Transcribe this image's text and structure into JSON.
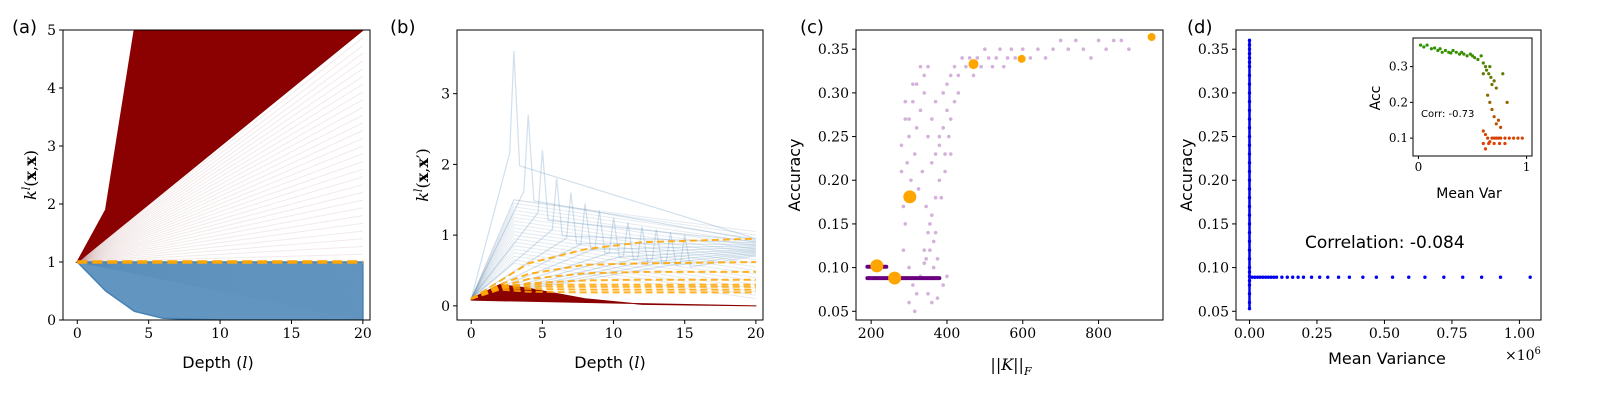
{
  "chart_data": [
    {
      "panel_label": "(a)",
      "type": "line",
      "xlabel": "Depth (",
      "xlabel_var": "l",
      "xlabel_end": ")",
      "ylabel": "k^l(x,x)",
      "xlim": [
        -1,
        20.5
      ],
      "ylim": [
        0,
        5
      ],
      "xticks": [
        "0",
        "5",
        "10",
        "15",
        "20"
      ],
      "yticks": [
        "0",
        "1",
        "2",
        "3",
        "4",
        "5"
      ],
      "series": [
        {
          "role": "divergent",
          "color": "#8b0000",
          "x": [
            0,
            2,
            4,
            6,
            10,
            20
          ],
          "y": [
            1,
            1.9,
            5,
            5,
            5,
            5
          ]
        },
        {
          "role": "convergent",
          "color": "#4682b4",
          "x": [
            0,
            2,
            4,
            6,
            10,
            20
          ],
          "y": [
            1,
            0.5,
            0.15,
            0.03,
            0,
            0
          ]
        },
        {
          "role": "mean",
          "color": "#ffa500",
          "dashed": true,
          "x": [
            0,
            20
          ],
          "y": [
            1,
            1
          ]
        }
      ]
    },
    {
      "panel_label": "(b)",
      "type": "line",
      "xlabel": "Depth (",
      "xlabel_var": "l",
      "xlabel_end": ")",
      "ylabel": "k^l(x,x')",
      "xlim": [
        -1,
        20.5
      ],
      "ylim": [
        -0.2,
        3.9
      ],
      "xticks": [
        "0",
        "5",
        "10",
        "15",
        "20"
      ],
      "yticks": [
        "0",
        "1",
        "2",
        "3"
      ],
      "series": [
        {
          "role": "peaks",
          "color": "#4682b4",
          "x": [
            0,
            2,
            3,
            4,
            6,
            10,
            20
          ],
          "y": [
            0.1,
            1.2,
            3.6,
            2.4,
            1.6,
            1.1,
            1.0
          ]
        },
        {
          "role": "convergent",
          "color": "#8b0000",
          "x": [
            0,
            2,
            4,
            8,
            12,
            20
          ],
          "y": [
            0.1,
            0.3,
            0.25,
            0.1,
            0.02,
            0
          ]
        },
        {
          "role": "mean-1",
          "color": "#ffa500",
          "dashed": true,
          "x": [
            0,
            2,
            4,
            8,
            12,
            20
          ],
          "y": [
            0.1,
            0.35,
            0.6,
            0.8,
            0.9,
            0.95
          ]
        },
        {
          "role": "mean-2",
          "color": "#ffa500",
          "dashed": true,
          "x": [
            0,
            2,
            4,
            8,
            12,
            20
          ],
          "y": [
            0.1,
            0.3,
            0.45,
            0.58,
            0.6,
            0.62
          ]
        },
        {
          "role": "mean-3",
          "color": "#ffa500",
          "dashed": true,
          "x": [
            0,
            2,
            4,
            8,
            12,
            20
          ],
          "y": [
            0.1,
            0.27,
            0.38,
            0.46,
            0.48,
            0.48
          ]
        },
        {
          "role": "mean-4",
          "color": "#ffa500",
          "dashed": true,
          "x": [
            0,
            2,
            4,
            8,
            12,
            20
          ],
          "y": [
            0.1,
            0.25,
            0.32,
            0.36,
            0.37,
            0.37
          ]
        },
        {
          "role": "mean-5",
          "color": "#ffa500",
          "dashed": true,
          "x": [
            0,
            2,
            4,
            8,
            12,
            20
          ],
          "y": [
            0.1,
            0.28,
            0.3,
            0.3,
            0.3,
            0.3
          ]
        },
        {
          "role": "mean-6",
          "color": "#ffa500",
          "dashed": true,
          "x": [
            0,
            2,
            4,
            8,
            12,
            20
          ],
          "y": [
            0.1,
            0.27,
            0.27,
            0.27,
            0.27,
            0.27
          ]
        },
        {
          "role": "mean-7",
          "color": "#ffa500",
          "dashed": true,
          "x": [
            0,
            2,
            4,
            8,
            12,
            20
          ],
          "y": [
            0.1,
            0.25,
            0.24,
            0.23,
            0.23,
            0.23
          ]
        },
        {
          "role": "mean-8",
          "color": "#ffa500",
          "dashed": true,
          "x": [
            0,
            2,
            4,
            8,
            12,
            20
          ],
          "y": [
            0.1,
            0.23,
            0.2,
            0.19,
            0.19,
            0.19
          ]
        }
      ]
    },
    {
      "panel_label": "(c)",
      "type": "scatter",
      "xlabel": "||K||_F",
      "ylabel": "Accuracy",
      "xlim": [
        160,
        970
      ],
      "ylim": [
        0.04,
        0.372
      ],
      "xticks": [
        "200",
        "400",
        "600",
        "800"
      ],
      "yticks": [
        "0.05",
        "0.10",
        "0.15",
        "0.20",
        "0.25",
        "0.30",
        "0.35"
      ],
      "purple_points": [
        [
          290,
          0.29
        ],
        [
          300,
          0.27
        ],
        [
          310,
          0.31
        ],
        [
          320,
          0.26
        ],
        [
          330,
          0.28
        ],
        [
          340,
          0.3
        ],
        [
          350,
          0.25
        ],
        [
          360,
          0.27
        ],
        [
          370,
          0.29
        ],
        [
          380,
          0.24
        ],
        [
          280,
          0.24
        ],
        [
          295,
          0.22
        ],
        [
          305,
          0.2
        ],
        [
          315,
          0.23
        ],
        [
          325,
          0.19
        ],
        [
          335,
          0.21
        ],
        [
          345,
          0.17
        ],
        [
          355,
          0.15
        ],
        [
          365,
          0.13
        ],
        [
          375,
          0.11
        ],
        [
          285,
          0.12
        ],
        [
          300,
          0.1
        ],
        [
          310,
          0.08
        ],
        [
          320,
          0.07
        ],
        [
          330,
          0.09
        ],
        [
          340,
          0.12
        ],
        [
          350,
          0.14
        ],
        [
          360,
          0.16
        ],
        [
          370,
          0.18
        ],
        [
          380,
          0.2
        ],
        [
          390,
          0.3
        ],
        [
          400,
          0.31
        ],
        [
          410,
          0.32
        ],
        [
          420,
          0.33
        ],
        [
          430,
          0.32
        ],
        [
          440,
          0.34
        ],
        [
          450,
          0.33
        ],
        [
          460,
          0.34
        ],
        [
          470,
          0.32
        ],
        [
          480,
          0.34
        ],
        [
          490,
          0.33
        ],
        [
          500,
          0.35
        ],
        [
          510,
          0.34
        ],
        [
          520,
          0.33
        ],
        [
          530,
          0.34
        ],
        [
          540,
          0.35
        ],
        [
          550,
          0.33
        ],
        [
          560,
          0.34
        ],
        [
          570,
          0.35
        ],
        [
          580,
          0.34
        ],
        [
          600,
          0.35
        ],
        [
          620,
          0.34
        ],
        [
          640,
          0.35
        ],
        [
          660,
          0.34
        ],
        [
          680,
          0.35
        ],
        [
          700,
          0.36
        ],
        [
          720,
          0.35
        ],
        [
          740,
          0.36
        ],
        [
          760,
          0.35
        ],
        [
          780,
          0.34
        ],
        [
          800,
          0.36
        ],
        [
          820,
          0.35
        ],
        [
          840,
          0.36
        ],
        [
          860,
          0.36
        ],
        [
          880,
          0.35
        ],
        [
          390,
          0.26
        ],
        [
          400,
          0.28
        ],
        [
          410,
          0.27
        ],
        [
          420,
          0.29
        ],
        [
          430,
          0.3
        ],
        [
          360,
          0.22
        ],
        [
          370,
          0.23
        ],
        [
          380,
          0.25
        ],
        [
          395,
          0.23
        ],
        [
          405,
          0.25
        ],
        [
          330,
          0.33
        ],
        [
          340,
          0.32
        ],
        [
          350,
          0.33
        ],
        [
          320,
          0.31
        ],
        [
          310,
          0.29
        ],
        [
          300,
          0.25
        ],
        [
          290,
          0.27
        ],
        [
          280,
          0.21
        ],
        [
          285,
          0.17
        ],
        [
          290,
          0.15
        ],
        [
          350,
          0.07
        ],
        [
          360,
          0.06
        ],
        [
          375,
          0.065
        ],
        [
          390,
          0.08
        ],
        [
          400,
          0.09
        ],
        [
          300,
          0.06
        ],
        [
          315,
          0.05
        ],
        [
          340,
          0.105
        ],
        [
          345,
          0.11
        ],
        [
          355,
          0.12
        ],
        [
          365,
          0.1
        ],
        [
          370,
          0.14
        ],
        [
          385,
          0.18
        ],
        [
          395,
          0.21
        ],
        [
          410,
          0.23
        ]
      ],
      "purple_bands": [
        {
          "x": [
            190,
            240
          ],
          "y": 0.101
        },
        {
          "x": [
            190,
            380
          ],
          "y": 0.088
        }
      ],
      "orange_points": [
        {
          "x": 215,
          "y": 0.102,
          "size": "large"
        },
        {
          "x": 262,
          "y": 0.088,
          "size": "large"
        },
        {
          "x": 302,
          "y": 0.181,
          "size": "large"
        },
        {
          "x": 470,
          "y": 0.333,
          "size": "medium"
        },
        {
          "x": 597,
          "y": 0.339,
          "size": "small"
        },
        {
          "x": 940,
          "y": 0.364,
          "size": "small"
        }
      ]
    },
    {
      "panel_label": "(d)",
      "type": "scatter",
      "xlabel": "Mean Variance",
      "ylabel": "Accuracy",
      "x_multiplier": "×10",
      "x_multiplier_exp": "6",
      "xlim": [
        -0.05,
        1.08
      ],
      "ylim": [
        0.04,
        0.372
      ],
      "xticks": [
        "0.00",
        "0.25",
        "0.50",
        "0.75",
        "1.00"
      ],
      "yticks": [
        "0.05",
        "0.10",
        "0.15",
        "0.20",
        "0.25",
        "0.30",
        "0.35"
      ],
      "annotation": "Correlation: -0.084",
      "points": [
        [
          0.0,
          0.36
        ],
        [
          0.0,
          0.355
        ],
        [
          0.0,
          0.35
        ],
        [
          0.0,
          0.345
        ],
        [
          0.0,
          0.34
        ],
        [
          0.0,
          0.335
        ],
        [
          0.0,
          0.33
        ],
        [
          0.0,
          0.32
        ],
        [
          0.0,
          0.31
        ],
        [
          0.0,
          0.3
        ],
        [
          0.0,
          0.29
        ],
        [
          0.0,
          0.28
        ],
        [
          0.0,
          0.27
        ],
        [
          0.0,
          0.26
        ],
        [
          0.0,
          0.25
        ],
        [
          0.0,
          0.24
        ],
        [
          0.0,
          0.23
        ],
        [
          0.0,
          0.22
        ],
        [
          0.0,
          0.21
        ],
        [
          0.0,
          0.2
        ],
        [
          0.0,
          0.19
        ],
        [
          0.0,
          0.18
        ],
        [
          0.0,
          0.17
        ],
        [
          0.0,
          0.16
        ],
        [
          0.0,
          0.15
        ],
        [
          0.0,
          0.14
        ],
        [
          0.0,
          0.13
        ],
        [
          0.0,
          0.12
        ],
        [
          0.0,
          0.11
        ],
        [
          0.0,
          0.1
        ],
        [
          0.0,
          0.095
        ],
        [
          0.0,
          0.09
        ],
        [
          0.0,
          0.085
        ],
        [
          0.0,
          0.08
        ],
        [
          0.0,
          0.07
        ],
        [
          0.0,
          0.06
        ],
        [
          0.0,
          0.053
        ],
        [
          0.01,
          0.089
        ],
        [
          0.02,
          0.089
        ],
        [
          0.03,
          0.089
        ],
        [
          0.04,
          0.089
        ],
        [
          0.05,
          0.089
        ],
        [
          0.06,
          0.089
        ],
        [
          0.07,
          0.089
        ],
        [
          0.08,
          0.089
        ],
        [
          0.09,
          0.089
        ],
        [
          0.1,
          0.089
        ],
        [
          0.12,
          0.089
        ],
        [
          0.14,
          0.089
        ],
        [
          0.16,
          0.089
        ],
        [
          0.18,
          0.089
        ],
        [
          0.2,
          0.089
        ],
        [
          0.23,
          0.089
        ],
        [
          0.26,
          0.089
        ],
        [
          0.29,
          0.089
        ],
        [
          0.33,
          0.089
        ],
        [
          0.37,
          0.089
        ],
        [
          0.42,
          0.089
        ],
        [
          0.47,
          0.089
        ],
        [
          0.53,
          0.089
        ],
        [
          0.59,
          0.089
        ],
        [
          0.65,
          0.089
        ],
        [
          0.72,
          0.089
        ],
        [
          0.79,
          0.089
        ],
        [
          0.86,
          0.089
        ],
        [
          0.93,
          0.089
        ],
        [
          1.04,
          0.089
        ]
      ],
      "inset": {
        "xlabel": "Mean Var",
        "ylabel": "Acc",
        "annotation": "Corr: -0.73",
        "xlim": [
          -0.05,
          1.05
        ],
        "ylim": [
          0.05,
          0.38
        ],
        "xticks": [
          "0",
          "1"
        ],
        "yticks": [
          "0.1",
          "0.2",
          "0.3"
        ],
        "points": [
          [
            0.02,
            0.36
          ],
          [
            0.05,
            0.355
          ],
          [
            0.08,
            0.36
          ],
          [
            0.12,
            0.35
          ],
          [
            0.15,
            0.352
          ],
          [
            0.18,
            0.345
          ],
          [
            0.2,
            0.35
          ],
          [
            0.22,
            0.34
          ],
          [
            0.25,
            0.345
          ],
          [
            0.28,
            0.34
          ],
          [
            0.3,
            0.338
          ],
          [
            0.32,
            0.345
          ],
          [
            0.35,
            0.34
          ],
          [
            0.38,
            0.335
          ],
          [
            0.4,
            0.34
          ],
          [
            0.42,
            0.335
          ],
          [
            0.45,
            0.33
          ],
          [
            0.48,
            0.335
          ],
          [
            0.5,
            0.33
          ],
          [
            0.52,
            0.325
          ],
          [
            0.55,
            0.32
          ],
          [
            0.58,
            0.33
          ],
          [
            0.6,
            0.31
          ],
          [
            0.62,
            0.3
          ],
          [
            0.63,
            0.29
          ],
          [
            0.65,
            0.28
          ],
          [
            0.66,
            0.3
          ],
          [
            0.67,
            0.27
          ],
          [
            0.68,
            0.25
          ],
          [
            0.7,
            0.26
          ],
          [
            0.72,
            0.24
          ],
          [
            0.6,
            0.28
          ],
          [
            0.64,
            0.22
          ],
          [
            0.66,
            0.2
          ],
          [
            0.68,
            0.18
          ],
          [
            0.7,
            0.16
          ],
          [
            0.72,
            0.14
          ],
          [
            0.74,
            0.15
          ],
          [
            0.76,
            0.13
          ],
          [
            0.6,
            0.12
          ],
          [
            0.62,
            0.11
          ],
          [
            0.64,
            0.1
          ],
          [
            0.66,
            0.09
          ],
          [
            0.68,
            0.1
          ],
          [
            0.7,
            0.1
          ],
          [
            0.72,
            0.1
          ],
          [
            0.74,
            0.1
          ],
          [
            0.76,
            0.1
          ],
          [
            0.8,
            0.1
          ],
          [
            0.84,
            0.1
          ],
          [
            0.88,
            0.1
          ],
          [
            0.92,
            0.1
          ],
          [
            0.96,
            0.1
          ],
          [
            0.6,
            0.085
          ],
          [
            0.65,
            0.085
          ],
          [
            0.7,
            0.085
          ],
          [
            0.75,
            0.085
          ],
          [
            0.8,
            0.085
          ],
          [
            0.62,
            0.07
          ],
          [
            0.78,
            0.28
          ],
          [
            0.82,
            0.2
          ]
        ]
      }
    }
  ]
}
